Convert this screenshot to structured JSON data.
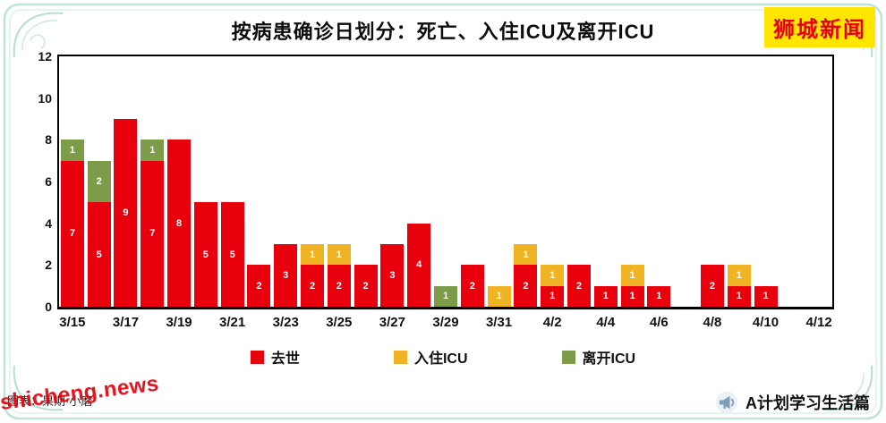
{
  "header": {
    "brand_badge": "狮城新闻"
  },
  "footer": {
    "credit": "图表：果期·小磨",
    "watermark": "shicheng.news",
    "brand": "A计划学习生活篇"
  },
  "colors": {
    "death_red": "#e8000d",
    "icu_in_yellow": "#f0b323",
    "icu_out_green": "#7d9c4a",
    "badge_bg": "#ffe600",
    "badge_text": "#e60012",
    "watermark_red": "#e8000b",
    "frame_teal": "#b5ddd2"
  },
  "chart_data": {
    "type": "bar",
    "stacked": true,
    "title": "按病患确诊日划分：死亡、入住ICU及离开ICU",
    "xlabel": "",
    "ylabel": "",
    "ylim": [
      0,
      12
    ],
    "y_ticks": [
      0,
      2,
      4,
      6,
      8,
      10,
      12
    ],
    "grid": false,
    "legend_position": "bottom",
    "bar_value_labels": true,
    "categories": [
      "3/15",
      "3/16",
      "3/17",
      "3/18",
      "3/19",
      "3/20",
      "3/21",
      "3/22",
      "3/23",
      "3/24",
      "3/25",
      "3/26",
      "3/27",
      "3/28",
      "3/29",
      "3/30",
      "3/31",
      "4/1",
      "4/2",
      "4/3",
      "4/4",
      "4/5",
      "4/6",
      "4/7",
      "4/8",
      "4/9",
      "4/10",
      "4/11",
      "4/12"
    ],
    "x_tick_labels": [
      "3/15",
      "3/17",
      "3/19",
      "3/21",
      "3/23",
      "3/25",
      "3/27",
      "3/29",
      "3/31",
      "4/2",
      "4/4",
      "4/6",
      "4/8",
      "4/10",
      "4/12"
    ],
    "series": [
      {
        "name": "去世",
        "color": "#e8000d",
        "values": [
          7,
          5,
          9,
          7,
          8,
          5,
          5,
          2,
          3,
          2,
          2,
          2,
          3,
          4,
          0,
          2,
          0,
          2,
          1,
          2,
          1,
          1,
          1,
          0,
          2,
          1,
          1,
          0,
          0
        ]
      },
      {
        "name": "入住ICU",
        "color": "#f0b323",
        "values": [
          0,
          0,
          0,
          0,
          0,
          0,
          0,
          0,
          0,
          1,
          1,
          0,
          0,
          0,
          0,
          0,
          1,
          1,
          1,
          0,
          0,
          1,
          0,
          0,
          0,
          1,
          0,
          0,
          0
        ]
      },
      {
        "name": "离开ICU",
        "color": "#7d9c4a",
        "values": [
          1,
          2,
          0,
          1,
          0,
          0,
          0,
          0,
          0,
          0,
          0,
          0,
          0,
          0,
          1,
          0,
          0,
          0,
          0,
          0,
          0,
          0,
          0,
          0,
          0,
          0,
          0,
          0,
          0
        ]
      }
    ]
  }
}
